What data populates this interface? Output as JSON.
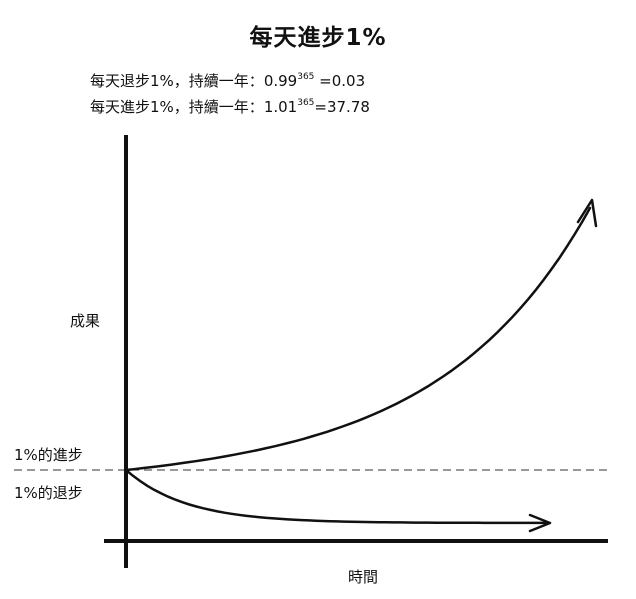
{
  "title": "每天進步1%",
  "formulas": {
    "decline": {
      "prefix": "每天退步1%，持續一年：",
      "base": "0.99",
      "exponent": "365",
      "result": " =0.03"
    },
    "improve": {
      "prefix": "每天進步1%，持續一年：",
      "base": "1.01",
      "exponent": "365",
      "result": "=37.78"
    }
  },
  "chart_data": {
    "type": "line",
    "xlabel": "時間",
    "ylabel": "成果",
    "baseline_labels": {
      "above": "1%的進步",
      "below": "1%的退步"
    },
    "baseline_value": 1,
    "xlim": [
      0,
      365
    ],
    "series": [
      {
        "label": "1%的進步",
        "base": 1.01,
        "end_value": 37.78,
        "arrow": true,
        "color": "#111111"
      },
      {
        "label": "1%的退步",
        "base": 0.99,
        "end_value": 0.03,
        "arrow": true,
        "color": "#111111"
      }
    ],
    "grid": false,
    "legend": "none"
  }
}
